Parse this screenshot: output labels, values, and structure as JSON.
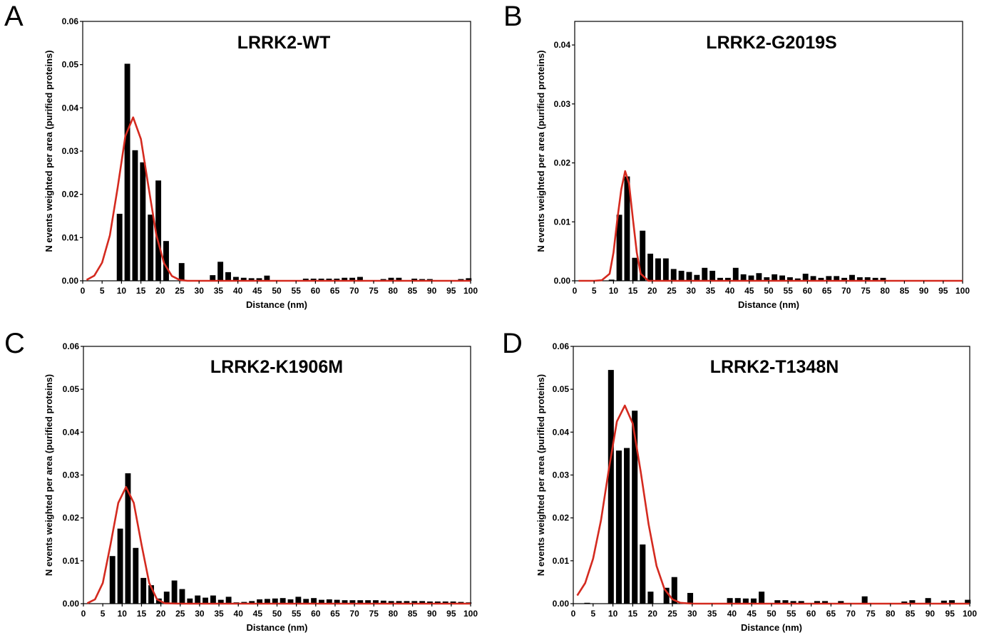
{
  "figure": {
    "panels": [
      {
        "letter": "A",
        "title": "LRRK2-WT"
      },
      {
        "letter": "B",
        "title": "LRRK2-G2019S"
      },
      {
        "letter": "C",
        "title": "LRRK2-K1906M"
      },
      {
        "letter": "D",
        "title": "LRRK2-T1348N"
      }
    ]
  },
  "chart_data": [
    {
      "type": "bar",
      "title": "LRRK2-WT",
      "xlabel": "Distance (nm)",
      "ylabel": "N events weighted per area (purified proteins)",
      "xlim": [
        0,
        100
      ],
      "ylim": [
        0,
        0.06
      ],
      "xticks": [
        "0",
        "5",
        "10",
        "15",
        "20",
        "25",
        "30",
        "35",
        "40",
        "45",
        "50",
        "55",
        "60",
        "65",
        "70",
        "75",
        "80",
        "85",
        "90",
        "95",
        "100"
      ],
      "yticks": [
        "0.00",
        "0.01",
        "0.02",
        "0.03",
        "0.04",
        "0.05",
        "0.06"
      ],
      "grid": false,
      "bar_color": "#000000",
      "fit_color": "#d42a1f",
      "series": [
        {
          "type": "bar",
          "x": [
            3.5,
            5.5,
            7.5,
            9.5,
            11.5,
            13.5,
            15.5,
            17.5,
            19.5,
            21.5,
            23.5,
            25.5,
            27.5,
            29.5,
            31.5,
            33.5,
            35.5,
            37.5,
            39.5,
            41.5,
            43.5,
            45.5,
            47.5,
            49.5,
            51.5,
            53.5,
            55.5,
            57.5,
            59.5,
            61.5,
            63.5,
            65.5,
            67.5,
            69.5,
            71.5,
            73.5,
            75.5,
            77.5,
            79.5,
            81.5,
            83.5,
            85.5,
            87.5,
            89.5,
            91.5,
            93.5,
            95.5,
            97.5,
            99.5
          ],
          "values": [
            0,
            0,
            0,
            0.0155,
            0.0502,
            0.0302,
            0.0274,
            0.0153,
            0.0232,
            0.0092,
            0,
            0.0041,
            0,
            0,
            0,
            0.0013,
            0.0044,
            0.002,
            0.0009,
            0.0007,
            0.0006,
            0.0006,
            0.0012,
            0,
            0,
            0,
            0,
            0.0005,
            0.0005,
            0.0005,
            0.0005,
            0.0005,
            0.0007,
            0.0007,
            0.0009,
            0,
            0,
            0.0004,
            0.0007,
            0.0007,
            0,
            0.0005,
            0.0004,
            0.0004,
            0,
            0,
            0,
            0.0004,
            0.0006
          ]
        },
        {
          "type": "line",
          "x": [
            1,
            3,
            5,
            7,
            9,
            11,
            13,
            15,
            17,
            19,
            21,
            23,
            25,
            27,
            29,
            31,
            33,
            35,
            37,
            39,
            41,
            43,
            45,
            47,
            49,
            51,
            53,
            55,
            57,
            59,
            61,
            63,
            65,
            67,
            69,
            71,
            73,
            75,
            77,
            79,
            81,
            83,
            85,
            87,
            89,
            91,
            93,
            95,
            97,
            99,
            100
          ],
          "values": [
            0.0002,
            0.0012,
            0.0042,
            0.0105,
            0.0215,
            0.0335,
            0.0378,
            0.0328,
            0.0215,
            0.0105,
            0.004,
            0.0011,
            0.0002,
            0,
            0,
            0,
            0,
            0,
            0,
            0,
            0,
            0,
            0,
            0,
            0,
            0,
            0,
            0,
            0,
            0,
            0,
            0,
            0,
            0,
            0,
            0,
            0,
            0,
            0,
            0,
            0,
            0,
            0,
            0,
            0,
            0,
            0,
            0,
            0,
            0,
            0
          ]
        }
      ]
    },
    {
      "type": "bar",
      "title": "LRRK2-G2019S",
      "xlabel": "Distance (nm)",
      "ylabel": "N events weighted per area (purified proteins)",
      "xlim": [
        0,
        100
      ],
      "ylim": [
        0,
        0.044
      ],
      "xticks": [
        "0",
        "5",
        "10",
        "15",
        "20",
        "25",
        "30",
        "35",
        "40",
        "45",
        "50",
        "55",
        "60",
        "65",
        "70",
        "75",
        "80",
        "85",
        "90",
        "95",
        "100"
      ],
      "yticks": [
        "0.00",
        "0.01",
        "0.02",
        "0.03",
        "0.04"
      ],
      "grid": false,
      "bar_color": "#000000",
      "fit_color": "#d42a1f",
      "series": [
        {
          "type": "bar",
          "x": [
            3.5,
            5.5,
            7.5,
            9.5,
            11.5,
            13.5,
            15.5,
            17.5,
            19.5,
            21.5,
            23.5,
            25.5,
            27.5,
            29.5,
            31.5,
            33.5,
            35.5,
            37.5,
            39.5,
            41.5,
            43.5,
            45.5,
            47.5,
            49.5,
            51.5,
            53.5,
            55.5,
            57.5,
            59.5,
            61.5,
            63.5,
            65.5,
            67.5,
            69.5,
            71.5,
            73.5,
            75.5,
            77.5,
            79.5,
            81.5,
            83.5,
            85.5,
            87.5,
            89.5,
            91.5,
            93.5,
            95.5,
            97.5,
            99.5
          ],
          "values": [
            0,
            0,
            0,
            0.0002,
            0.0112,
            0.0177,
            0.0039,
            0.0085,
            0.0046,
            0.0038,
            0.0038,
            0.002,
            0.0017,
            0.0015,
            0.001,
            0.0022,
            0.0017,
            0.0005,
            0.0005,
            0.0022,
            0.0011,
            0.0009,
            0.0013,
            0.0006,
            0.0011,
            0.0009,
            0.0006,
            0.0004,
            0.0012,
            0.0008,
            0.0005,
            0.0008,
            0.0008,
            0.0005,
            0.001,
            0.0006,
            0.0006,
            0.0005,
            0.0005,
            0,
            0,
            0,
            0,
            0,
            0,
            0,
            0,
            0,
            0
          ]
        },
        {
          "type": "line",
          "x": [
            1,
            3,
            5,
            7,
            9,
            10,
            11,
            12,
            13,
            14,
            15,
            16,
            17,
            19,
            21,
            23,
            25,
            30,
            40,
            50,
            60,
            70,
            80,
            90,
            100
          ],
          "values": [
            0,
            0,
            0,
            0.0001,
            0.0012,
            0.0048,
            0.0105,
            0.0155,
            0.0186,
            0.0165,
            0.0105,
            0.0048,
            0.0012,
            0,
            0,
            0,
            0,
            0,
            0,
            0,
            0,
            0,
            0,
            0,
            0
          ]
        }
      ]
    },
    {
      "type": "bar",
      "title": "LRRK2-K1906M",
      "xlabel": "Distance (nm)",
      "ylabel": "N events weighted per area (purified proteins)",
      "xlim": [
        0,
        100
      ],
      "ylim": [
        0,
        0.06
      ],
      "xticks": [
        "0",
        "5",
        "10",
        "15",
        "20",
        "25",
        "30",
        "35",
        "40",
        "45",
        "50",
        "55",
        "60",
        "65",
        "70",
        "75",
        "80",
        "85",
        "90",
        "95",
        "100"
      ],
      "yticks": [
        "0.00",
        "0.01",
        "0.02",
        "0.03",
        "0.04",
        "0.05",
        "0.06"
      ],
      "grid": false,
      "bar_color": "#000000",
      "fit_color": "#d42a1f",
      "series": [
        {
          "type": "bar",
          "x": [
            3.5,
            5.5,
            7.5,
            9.5,
            11.5,
            13.5,
            15.5,
            17.5,
            19.5,
            21.5,
            23.5,
            25.5,
            27.5,
            29.5,
            31.5,
            33.5,
            35.5,
            37.5,
            39.5,
            41.5,
            43.5,
            45.5,
            47.5,
            49.5,
            51.5,
            53.5,
            55.5,
            57.5,
            59.5,
            61.5,
            63.5,
            65.5,
            67.5,
            69.5,
            71.5,
            73.5,
            75.5,
            77.5,
            79.5,
            81.5,
            83.5,
            85.5,
            87.5,
            89.5,
            91.5,
            93.5,
            95.5,
            97.5,
            99.5
          ],
          "values": [
            0,
            0,
            0.0111,
            0.0175,
            0.0304,
            0.013,
            0.006,
            0.0043,
            0.0012,
            0.0028,
            0.0054,
            0.0034,
            0.0012,
            0.0019,
            0.0014,
            0.0019,
            0.0009,
            0.0016,
            0.0003,
            0.0004,
            0.0006,
            0.001,
            0.0011,
            0.0012,
            0.0013,
            0.001,
            0.0016,
            0.0011,
            0.0013,
            0.0009,
            0.001,
            0.0009,
            0.0008,
            0.0008,
            0.0008,
            0.0008,
            0.0008,
            0.0007,
            0.0006,
            0.0006,
            0.0006,
            0.0006,
            0.0006,
            0.0005,
            0.0005,
            0.0005,
            0.0005,
            0.0004,
            0.0003
          ]
        },
        {
          "type": "line",
          "x": [
            1,
            3,
            5,
            7,
            9,
            11,
            13,
            15,
            17,
            19,
            21,
            25,
            30,
            40,
            50,
            60,
            70,
            80,
            90,
            100
          ],
          "values": [
            0.0001,
            0.001,
            0.0048,
            0.0138,
            0.0235,
            0.0272,
            0.0235,
            0.0138,
            0.0048,
            0.001,
            0.0001,
            0,
            0,
            0,
            0,
            0,
            0,
            0,
            0,
            0
          ]
        }
      ]
    },
    {
      "type": "bar",
      "title": "LRRK2-T1348N",
      "xlabel": "Distance (nm)",
      "ylabel": "N events weighted per area (purified proteins)",
      "xlim": [
        0,
        100
      ],
      "ylim": [
        0,
        0.06
      ],
      "xticks": [
        "0",
        "5",
        "10",
        "15",
        "20",
        "25",
        "30",
        "35",
        "40",
        "45",
        "50",
        "55",
        "60",
        "65",
        "70",
        "75",
        "80",
        "85",
        "90",
        "95",
        "100"
      ],
      "yticks": [
        "0.00",
        "0.01",
        "0.02",
        "0.03",
        "0.04",
        "0.05",
        "0.06"
      ],
      "grid": false,
      "bar_color": "#000000",
      "fit_color": "#d42a1f",
      "series": [
        {
          "type": "bar",
          "x": [
            3.5,
            5.5,
            7.5,
            9.5,
            11.5,
            13.5,
            15.5,
            17.5,
            19.5,
            21.5,
            23.5,
            25.5,
            27.5,
            29.5,
            31.5,
            33.5,
            35.5,
            37.5,
            39.5,
            41.5,
            43.5,
            45.5,
            47.5,
            49.5,
            51.5,
            53.5,
            55.5,
            57.5,
            59.5,
            61.5,
            63.5,
            65.5,
            67.5,
            69.5,
            71.5,
            73.5,
            75.5,
            77.5,
            79.5,
            81.5,
            83.5,
            85.5,
            87.5,
            89.5,
            91.5,
            93.5,
            95.5,
            97.5,
            99.5
          ],
          "values": [
            0.0002,
            0,
            0,
            0.0545,
            0.0357,
            0.0363,
            0.045,
            0.0138,
            0.0028,
            0,
            0.0037,
            0.0062,
            0,
            0.0025,
            0,
            0,
            0,
            0,
            0.0013,
            0.0013,
            0.0012,
            0.0012,
            0.0028,
            0,
            0.0008,
            0.0008,
            0.0006,
            0.0006,
            0,
            0.0006,
            0.0006,
            0,
            0.0006,
            0,
            0,
            0.0017,
            0,
            0,
            0,
            0,
            0.0005,
            0.0008,
            0,
            0.0013,
            0,
            0.0007,
            0.0008,
            0,
            0.0009
          ]
        },
        {
          "type": "line",
          "x": [
            1,
            3,
            5,
            7,
            9,
            11,
            13,
            15,
            17,
            19,
            21,
            23,
            25,
            27,
            30,
            40,
            50,
            60,
            70,
            80,
            90,
            100
          ],
          "values": [
            0.0019,
            0.0048,
            0.0105,
            0.0195,
            0.0315,
            0.0425,
            0.0462,
            0.042,
            0.0308,
            0.0185,
            0.0088,
            0.0034,
            0.001,
            0.0002,
            0,
            0,
            0,
            0,
            0,
            0,
            0,
            0
          ]
        }
      ]
    }
  ]
}
